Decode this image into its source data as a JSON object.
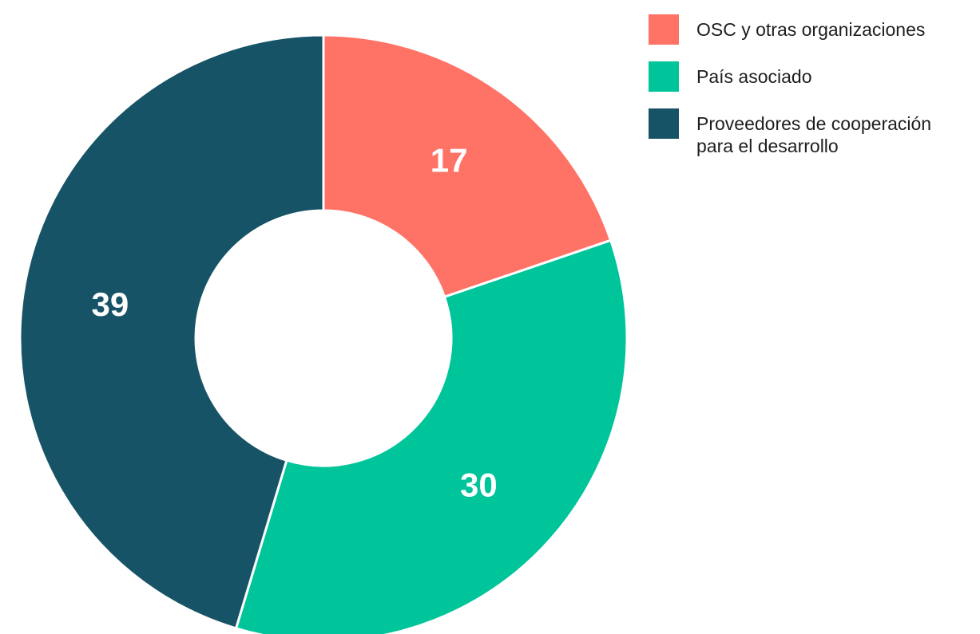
{
  "chart_data": {
    "type": "pie",
    "categories": [
      "OSC y otras organizaciones",
      "País asociado",
      "Proveedores de cooperación para el desarrollo"
    ],
    "values": [
      17,
      30,
      39
    ],
    "colors": [
      "#ff7366",
      "#00c49a",
      "#175366"
    ],
    "legend": "top-right"
  }
}
